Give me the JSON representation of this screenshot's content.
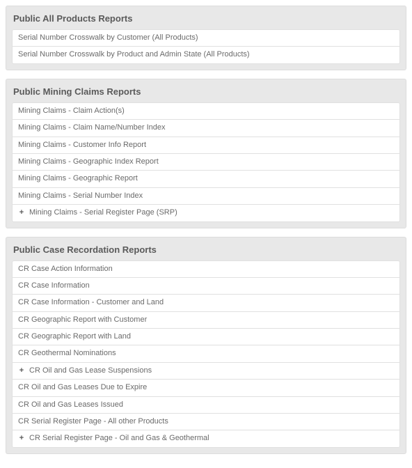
{
  "colors": {
    "section_bg": "#e8e8e8",
    "section_border": "#dcdcdc",
    "item_bg": "#ffffff",
    "item_border": "#e0e0e0",
    "title_text": "#5a5a5a",
    "item_text": "#6a6a6a"
  },
  "sections": [
    {
      "title": "Public All Products Reports",
      "items": [
        {
          "label": "Serial Number Crosswalk by Customer (All Products)",
          "expand": false
        },
        {
          "label": "Serial Number Crosswalk by Product and Admin State (All Products)",
          "expand": false
        }
      ]
    },
    {
      "title": "Public Mining Claims Reports",
      "items": [
        {
          "label": "Mining Claims - Claim Action(s)",
          "expand": false
        },
        {
          "label": "Mining Claims - Claim Name/Number Index",
          "expand": false
        },
        {
          "label": "Mining Claims - Customer Info Report",
          "expand": false
        },
        {
          "label": "Mining Claims - Geographic Index Report",
          "expand": false
        },
        {
          "label": "Mining Claims - Geographic Report",
          "expand": false
        },
        {
          "label": "Mining Claims - Serial Number Index",
          "expand": false
        },
        {
          "label": "Mining Claims - Serial Register Page (SRP)",
          "expand": true
        }
      ]
    },
    {
      "title": "Public Case Recordation Reports",
      "items": [
        {
          "label": "CR Case Action Information",
          "expand": false
        },
        {
          "label": "CR Case Information",
          "expand": false
        },
        {
          "label": "CR Case Information - Customer and Land",
          "expand": false
        },
        {
          "label": "CR Geographic Report with Customer",
          "expand": false
        },
        {
          "label": "CR Geographic Report with Land",
          "expand": false
        },
        {
          "label": "CR Geothermal Nominations",
          "expand": false
        },
        {
          "label": "CR Oil and Gas Lease Suspensions",
          "expand": true
        },
        {
          "label": "CR Oil and Gas Leases Due to Expire",
          "expand": false
        },
        {
          "label": "CR Oil and Gas Leases Issued",
          "expand": false
        },
        {
          "label": "CR Serial Register Page - All other Products",
          "expand": false
        },
        {
          "label": "CR Serial Register Page - Oil and Gas & Geothermal",
          "expand": true
        }
      ]
    }
  ]
}
